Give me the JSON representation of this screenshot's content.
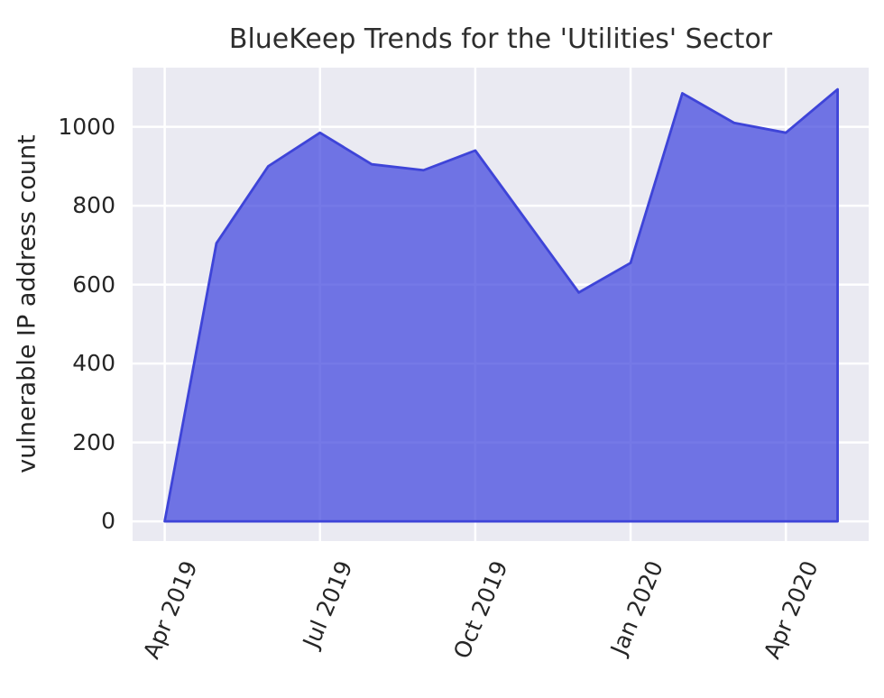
{
  "title": "BlueKeep Trends for the 'Utilities' Sector",
  "chart_data": {
    "type": "area",
    "title": "BlueKeep Trends for the 'Utilities' Sector",
    "xlabel": "",
    "ylabel": "vulnerable IP address count",
    "x": [
      "Apr 2019",
      "May 2019",
      "Jun 2019",
      "Jul 2019",
      "Aug 2019",
      "Sep 2019",
      "Oct 2019",
      "Nov 2019",
      "Dec 2019",
      "Jan 2020",
      "Feb 2020",
      "Mar 2020",
      "Apr 2020",
      "May 2020"
    ],
    "values": [
      0,
      705,
      900,
      985,
      905,
      890,
      940,
      760,
      580,
      655,
      1085,
      1010,
      985,
      1095
    ],
    "xticks": [
      "Apr 2019",
      "Jul 2019",
      "Oct 2019",
      "Jan 2020",
      "Apr 2020"
    ],
    "yticks": [
      0,
      200,
      400,
      600,
      800,
      1000
    ],
    "xlim": [
      -0.62,
      13.6
    ],
    "ylim": [
      -50,
      1150
    ],
    "grid": true,
    "legend": "none",
    "colors": {
      "fill": "rgba(64,69,222,0.72)",
      "line": "#3e44d8",
      "plot_background": "#eaeaf2",
      "grid": "#ffffff",
      "text": "#262626"
    }
  }
}
